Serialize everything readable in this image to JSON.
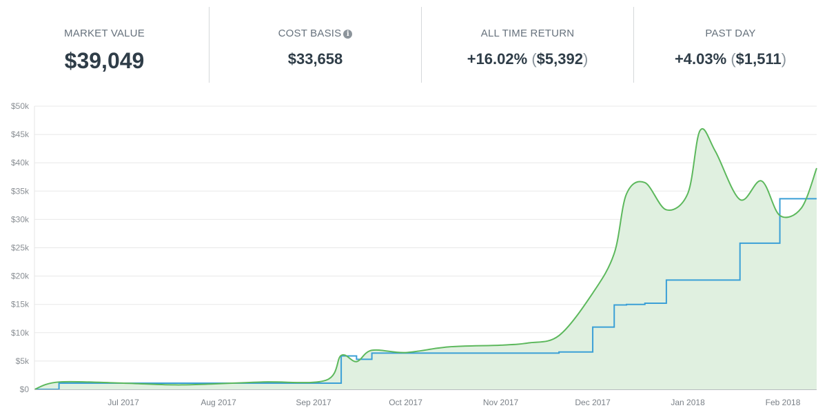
{
  "stats": [
    {
      "label": "MARKET VALUE",
      "value": "$39,049"
    },
    {
      "label": "COST BASIS",
      "value": "$33,658",
      "icon": "info-icon"
    },
    {
      "label": "ALL TIME RETURN",
      "value": "+16.02%",
      "sub_open": "(",
      "sub_value": "$5,392",
      "sub_close": ")"
    },
    {
      "label": "PAST DAY",
      "value": "+4.03%",
      "sub_open": "(",
      "sub_value": "$1,511",
      "sub_close": ")"
    }
  ],
  "colors": {
    "market_value": "#5cb85c",
    "cost_basis": "#3a9fd6",
    "fill": "#e0f0e0",
    "positive": "#35a645"
  },
  "chart_data": {
    "type": "line",
    "title": "",
    "xlabel": "",
    "ylabel": "",
    "ylim": [
      0,
      50000
    ],
    "grid": true,
    "y_ticks": [
      "$0",
      "$5k",
      "$10k",
      "$15k",
      "$20k",
      "$25k",
      "$30k",
      "$35k",
      "$40k",
      "$45k",
      "$50k"
    ],
    "x_ticks": [
      "Jul 2017",
      "Aug 2017",
      "Sep 2017",
      "Oct 2017",
      "Nov 2017",
      "Dec 2017",
      "Jan 2018",
      "Feb 2018"
    ],
    "x": [
      "2017-06-02",
      "2017-06-10",
      "2017-07-01",
      "2017-07-20",
      "2017-08-15",
      "2017-09-05",
      "2017-09-10",
      "2017-09-15",
      "2017-09-20",
      "2017-10-01",
      "2017-10-15",
      "2017-11-01",
      "2017-11-10",
      "2017-11-20",
      "2017-12-01",
      "2017-12-08",
      "2017-12-12",
      "2017-12-18",
      "2017-12-25",
      "2018-01-01",
      "2018-01-05",
      "2018-01-10",
      "2018-01-18",
      "2018-01-25",
      "2018-01-31",
      "2018-02-07",
      "2018-02-12"
    ],
    "series": [
      {
        "name": "Market Value",
        "values": [
          0,
          1300,
          1100,
          800,
          1300,
          1600,
          6000,
          4900,
          6900,
          6500,
          7500,
          7800,
          8200,
          9500,
          17000,
          24000,
          34500,
          36500,
          31700,
          34600,
          45700,
          42000,
          33500,
          36800,
          30700,
          32000,
          39049
        ]
      },
      {
        "name": "Cost Basis",
        "values": [
          0,
          1100,
          1100,
          1100,
          1100,
          1100,
          5900,
          5300,
          6400,
          6400,
          6400,
          6400,
          6400,
          6600,
          11000,
          14900,
          15000,
          15200,
          19300,
          19300,
          19300,
          19300,
          25800,
          25800,
          33658,
          33658,
          33658
        ]
      }
    ]
  }
}
